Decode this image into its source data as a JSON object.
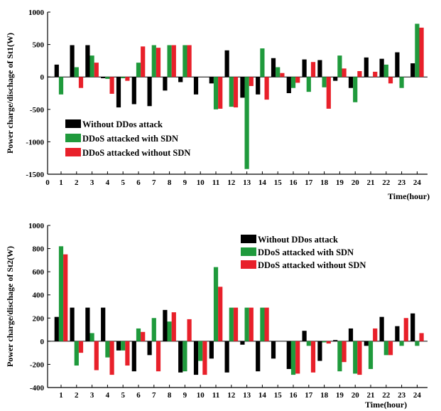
{
  "chart_data": [
    {
      "type": "bar",
      "ylabel": "Power charge/dischage of St1(W)",
      "xlabel": "Time(hour)",
      "ylim": [
        -1500,
        1000
      ],
      "yticks": [
        1000,
        500,
        0,
        -500,
        -1000,
        -1500
      ],
      "categories": [
        "1",
        "2",
        "3",
        "4",
        "5",
        "6",
        "7",
        "8",
        "9",
        "10",
        "11",
        "12",
        "13",
        "14",
        "15",
        "16",
        "17",
        "18",
        "19",
        "20",
        "21",
        "22",
        "23",
        "24"
      ],
      "x_origin_label": "0",
      "legend_position": "bottom-left",
      "series": [
        {
          "name": "Without DDos attack",
          "color": "#000000",
          "values": [
            190,
            490,
            490,
            -20,
            -470,
            -420,
            -450,
            -210,
            -80,
            -270,
            -100,
            410,
            -320,
            -270,
            290,
            -250,
            270,
            260,
            -60,
            -170,
            300,
            280,
            380,
            210
          ]
        },
        {
          "name": "DDoS attacked with SDN",
          "color": "#1f9a3c",
          "values": [
            -270,
            150,
            330,
            -30,
            -20,
            220,
            490,
            490,
            490,
            0,
            -500,
            -460,
            -1420,
            440,
            150,
            -170,
            -230,
            -160,
            330,
            -390,
            0,
            190,
            -170,
            820
          ]
        },
        {
          "name": "DDoS attacked without SDN",
          "color": "#e8202a",
          "values": [
            0,
            -170,
            220,
            -260,
            -60,
            470,
            450,
            490,
            490,
            0,
            -490,
            -470,
            -140,
            -350,
            60,
            -90,
            230,
            -490,
            130,
            90,
            80,
            -100,
            0,
            760
          ]
        }
      ]
    },
    {
      "type": "bar",
      "ylabel": "Power charge/dischage of St2(W)",
      "xlabel": "Time(hour)",
      "ylim": [
        -400,
        1000
      ],
      "yticks": [
        1000,
        800,
        600,
        400,
        200,
        0,
        -200,
        -400
      ],
      "categories": [
        "1",
        "2",
        "3",
        "4",
        "5",
        "6",
        "7",
        "8",
        "9",
        "10",
        "11",
        "12",
        "13",
        "14",
        "15",
        "16",
        "17",
        "18",
        "19",
        "20",
        "21",
        "22",
        "23",
        "24"
      ],
      "legend_position": "top-right",
      "series": [
        {
          "name": "Without DDos attack",
          "color": "#000000",
          "values": [
            210,
            290,
            290,
            290,
            -80,
            -260,
            -120,
            270,
            -270,
            -290,
            -150,
            -270,
            -30,
            -260,
            -150,
            -240,
            90,
            -170,
            10,
            110,
            -40,
            210,
            130,
            240
          ]
        },
        {
          "name": "DDoS attacked with SDN",
          "color": "#1f9a3c",
          "values": [
            820,
            -210,
            70,
            -140,
            -80,
            110,
            200,
            170,
            -260,
            -170,
            640,
            290,
            290,
            290,
            0,
            -290,
            -40,
            -10,
            -260,
            -280,
            -240,
            -120,
            -40,
            -40
          ]
        },
        {
          "name": "DDoS attacked without SDN",
          "color": "#e8202a",
          "values": [
            750,
            -100,
            -250,
            -290,
            -210,
            80,
            -260,
            250,
            190,
            -290,
            470,
            290,
            290,
            290,
            0,
            -280,
            -270,
            -20,
            -180,
            -290,
            110,
            -120,
            200,
            70
          ]
        }
      ]
    }
  ]
}
